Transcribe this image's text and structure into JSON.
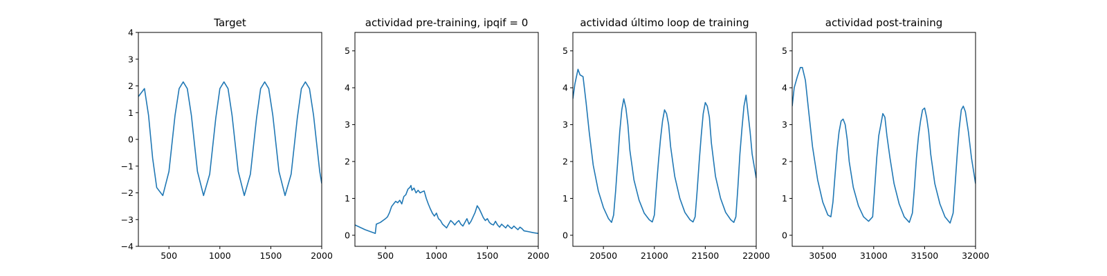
{
  "chart_data": [
    {
      "type": "line",
      "title": "Target",
      "xlabel": "",
      "ylabel": "",
      "xlim": [
        200,
        2000
      ],
      "ylim": [
        -4,
        4
      ],
      "xticks": [
        500,
        1000,
        1500,
        2000
      ],
      "yticks": [
        -4,
        -3,
        -2,
        -1,
        0,
        1,
        2,
        3,
        4
      ],
      "grid": false,
      "series": [
        {
          "color": "#1f77b4",
          "x": [
            200,
            260,
            300,
            340,
            380,
            440,
            500,
            560,
            600,
            640,
            680,
            720,
            780,
            840,
            900,
            960,
            1000,
            1040,
            1080,
            1120,
            1180,
            1240,
            1300,
            1360,
            1400,
            1440,
            1480,
            1520,
            1580,
            1640,
            1700,
            1760,
            1800,
            1840,
            1880,
            1920,
            1980,
            2000
          ],
          "y": [
            1.6,
            1.9,
            0.9,
            -0.7,
            -1.8,
            -2.1,
            -1.2,
            0.9,
            1.9,
            2.15,
            1.9,
            0.9,
            -1.2,
            -2.1,
            -1.3,
            0.8,
            1.9,
            2.15,
            1.9,
            0.9,
            -1.2,
            -2.1,
            -1.3,
            0.8,
            1.9,
            2.15,
            1.9,
            0.9,
            -1.2,
            -2.1,
            -1.3,
            0.8,
            1.9,
            2.15,
            1.9,
            0.9,
            -1.2,
            -1.65
          ]
        }
      ]
    },
    {
      "type": "line",
      "title": "actividad pre-training, ipqif = 0",
      "xlabel": "",
      "ylabel": "",
      "xlim": [
        200,
        2000
      ],
      "ylim": [
        -0.3,
        5.5
      ],
      "xticks": [
        500,
        1000,
        1500,
        2000
      ],
      "yticks": [
        0,
        1,
        2,
        3,
        4,
        5
      ],
      "grid": false,
      "series": [
        {
          "color": "#1f77b4",
          "x": [
            200,
            300,
            400,
            410,
            450,
            500,
            520,
            540,
            560,
            580,
            600,
            620,
            640,
            660,
            680,
            700,
            720,
            740,
            750,
            760,
            780,
            800,
            820,
            840,
            860,
            880,
            900,
            920,
            940,
            960,
            980,
            1000,
            1020,
            1040,
            1060,
            1080,
            1100,
            1120,
            1140,
            1160,
            1180,
            1200,
            1220,
            1240,
            1260,
            1280,
            1300,
            1320,
            1340,
            1360,
            1380,
            1400,
            1420,
            1440,
            1460,
            1480,
            1500,
            1520,
            1540,
            1560,
            1580,
            1600,
            1620,
            1640,
            1660,
            1680,
            1700,
            1720,
            1740,
            1760,
            1780,
            1800,
            1820,
            1840,
            1860,
            1900,
            1950,
            2000
          ],
          "y": [
            0.28,
            0.15,
            0.05,
            0.3,
            0.35,
            0.45,
            0.5,
            0.62,
            0.78,
            0.85,
            0.92,
            0.88,
            0.95,
            0.85,
            1.05,
            1.1,
            1.25,
            1.3,
            1.35,
            1.22,
            1.28,
            1.15,
            1.22,
            1.15,
            1.18,
            1.2,
            1.0,
            0.85,
            0.72,
            0.6,
            0.52,
            0.6,
            0.45,
            0.4,
            0.3,
            0.25,
            0.2,
            0.3,
            0.4,
            0.35,
            0.28,
            0.35,
            0.4,
            0.3,
            0.25,
            0.35,
            0.45,
            0.3,
            0.38,
            0.5,
            0.62,
            0.8,
            0.72,
            0.6,
            0.48,
            0.4,
            0.45,
            0.35,
            0.3,
            0.28,
            0.38,
            0.28,
            0.22,
            0.3,
            0.25,
            0.2,
            0.28,
            0.22,
            0.18,
            0.25,
            0.2,
            0.15,
            0.22,
            0.18,
            0.12,
            0.1,
            0.07,
            0.05
          ]
        }
      ]
    },
    {
      "type": "line",
      "title": "actividad último loop de training",
      "xlabel": "",
      "ylabel": "",
      "xlim": [
        20200,
        22000
      ],
      "ylim": [
        -0.3,
        5.5
      ],
      "xticks": [
        20500,
        21000,
        21500,
        22000
      ],
      "yticks": [
        0,
        1,
        2,
        3,
        4,
        5
      ],
      "grid": false,
      "series": [
        {
          "color": "#1f77b4",
          "x": [
            20200,
            20220,
            20250,
            20270,
            20300,
            20330,
            20360,
            20400,
            20450,
            20500,
            20550,
            20580,
            20600,
            20620,
            20640,
            20660,
            20680,
            20700,
            20720,
            20740,
            20760,
            20800,
            20850,
            20900,
            20950,
            20980,
            21000,
            21020,
            21040,
            21060,
            21080,
            21100,
            21120,
            21140,
            21160,
            21200,
            21250,
            21300,
            21350,
            21380,
            21400,
            21420,
            21440,
            21460,
            21480,
            21500,
            21520,
            21540,
            21560,
            21600,
            21650,
            21700,
            21750,
            21780,
            21800,
            21820,
            21840,
            21860,
            21880,
            21900,
            21920,
            21940,
            21960,
            22000
          ],
          "y": [
            3.7,
            4.1,
            4.5,
            4.35,
            4.3,
            3.6,
            2.8,
            1.9,
            1.2,
            0.75,
            0.45,
            0.35,
            0.55,
            1.2,
            2.0,
            2.8,
            3.4,
            3.7,
            3.45,
            3.0,
            2.3,
            1.5,
            0.95,
            0.6,
            0.42,
            0.36,
            0.55,
            1.3,
            2.0,
            2.6,
            3.1,
            3.4,
            3.3,
            3.0,
            2.4,
            1.6,
            1.0,
            0.62,
            0.42,
            0.36,
            0.5,
            1.2,
            2.0,
            2.7,
            3.3,
            3.6,
            3.5,
            3.2,
            2.5,
            1.6,
            1.0,
            0.62,
            0.42,
            0.35,
            0.5,
            1.3,
            2.2,
            2.9,
            3.5,
            3.8,
            3.3,
            2.8,
            2.2,
            1.55
          ]
        }
      ]
    },
    {
      "type": "line",
      "title": "actividad post-training",
      "xlabel": "",
      "ylabel": "",
      "xlim": [
        30200,
        32000
      ],
      "ylim": [
        -0.3,
        5.5
      ],
      "xticks": [
        30500,
        31000,
        31500,
        32000
      ],
      "yticks": [
        0,
        1,
        2,
        3,
        4,
        5
      ],
      "grid": false,
      "series": [
        {
          "color": "#1f77b4",
          "x": [
            30200,
            30220,
            30250,
            30280,
            30300,
            30330,
            30360,
            30400,
            30450,
            30500,
            30550,
            30580,
            30600,
            30620,
            30640,
            30660,
            30680,
            30700,
            30720,
            30740,
            30760,
            30800,
            30850,
            30900,
            30950,
            30990,
            31010,
            31030,
            31050,
            31070,
            31090,
            31110,
            31130,
            31160,
            31200,
            31250,
            31300,
            31350,
            31380,
            31400,
            31420,
            31440,
            31460,
            31480,
            31500,
            31520,
            31540,
            31560,
            31600,
            31650,
            31700,
            31750,
            31780,
            31800,
            31820,
            31840,
            31860,
            31880,
            31900,
            31930,
            31960,
            32000
          ],
          "y": [
            3.5,
            4.0,
            4.3,
            4.55,
            4.55,
            4.2,
            3.4,
            2.4,
            1.5,
            0.9,
            0.55,
            0.5,
            0.9,
            1.6,
            2.3,
            2.8,
            3.1,
            3.15,
            3.0,
            2.6,
            2.0,
            1.3,
            0.8,
            0.5,
            0.38,
            0.5,
            1.3,
            2.1,
            2.7,
            3.0,
            3.3,
            3.2,
            2.7,
            2.1,
            1.4,
            0.85,
            0.5,
            0.35,
            0.6,
            1.3,
            2.1,
            2.7,
            3.1,
            3.4,
            3.45,
            3.2,
            2.8,
            2.2,
            1.4,
            0.85,
            0.5,
            0.33,
            0.6,
            1.4,
            2.2,
            2.9,
            3.4,
            3.5,
            3.35,
            2.8,
            2.1,
            1.4
          ]
        }
      ]
    }
  ]
}
